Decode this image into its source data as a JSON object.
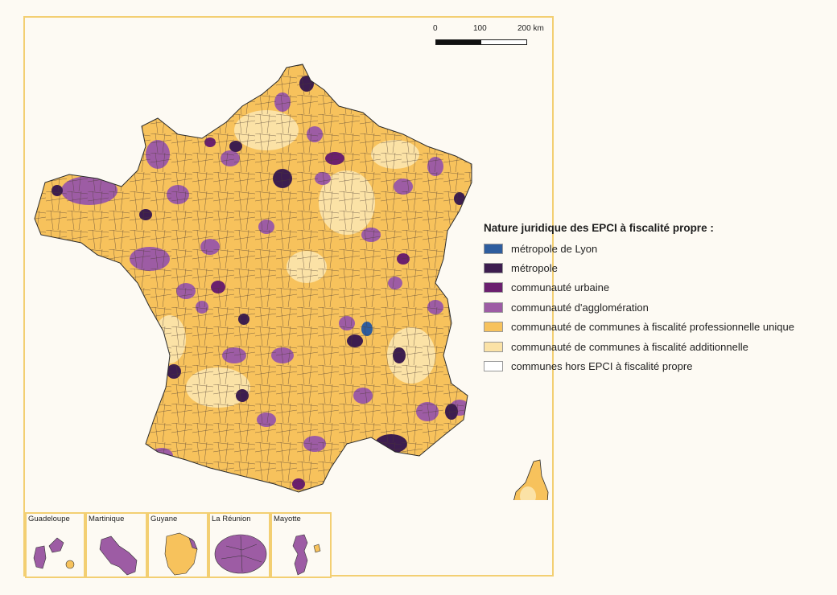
{
  "scale": {
    "ticks": [
      "0",
      "100",
      "200 km"
    ]
  },
  "legend": {
    "title": "Nature juridique des EPCI à fiscalité propre :",
    "items": [
      {
        "label": "métropole de Lyon",
        "color": "#2e5d9e"
      },
      {
        "label": "métropole",
        "color": "#3d1d4f"
      },
      {
        "label": "communauté urbaine",
        "color": "#6b1f6e"
      },
      {
        "label": "communauté d'agglomération",
        "color": "#9d5ca4"
      },
      {
        "label": "communauté de communes à fiscalité professionnelle unique",
        "color": "#f7c25c"
      },
      {
        "label": "communauté de communes à fiscalité additionnelle",
        "color": "#fbe2a6"
      },
      {
        "label": "communes hors EPCI à fiscalité propre",
        "color": "#ffffff"
      }
    ]
  },
  "insets": [
    {
      "name": "Guadeloupe"
    },
    {
      "name": "Martinique"
    },
    {
      "name": "Guyane"
    },
    {
      "name": "La Réunion"
    },
    {
      "name": "Mayotte"
    }
  ]
}
